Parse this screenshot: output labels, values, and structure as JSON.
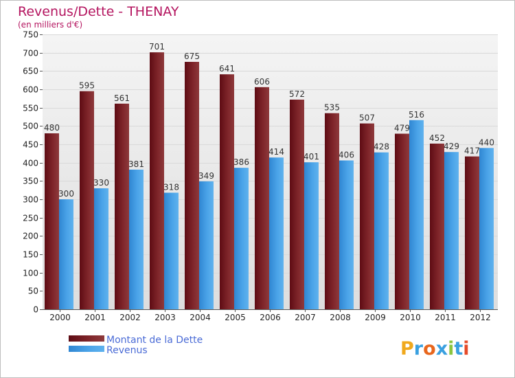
{
  "chart_data": {
    "type": "bar",
    "title": "Revenus/Dette - THENAY",
    "subtitle": "(en milliers d'€)",
    "categories": [
      "2000",
      "2001",
      "2002",
      "2003",
      "2004",
      "2005",
      "2006",
      "2007",
      "2008",
      "2009",
      "2010",
      "2011",
      "2012"
    ],
    "series": [
      {
        "name": "Montant de la Dette",
        "values": [
          480,
          595,
          561,
          701,
          675,
          641,
          606,
          572,
          535,
          507,
          479,
          452,
          417
        ],
        "color": "#7a1b23"
      },
      {
        "name": "Revenus",
        "values": [
          300,
          330,
          381,
          318,
          349,
          386,
          414,
          401,
          406,
          428,
          516,
          429,
          440
        ],
        "color": "#3d97e0"
      }
    ],
    "ylim": [
      0,
      750
    ],
    "yticks": [
      0,
      50,
      100,
      150,
      200,
      250,
      300,
      350,
      400,
      450,
      500,
      550,
      600,
      650,
      700,
      750
    ],
    "grid": true,
    "legend_position": "bottom-left",
    "colors": {
      "title": "#b4145f",
      "grid": "#d9d9d9",
      "plot_bg": "#e8e8e8",
      "legend_text": "#4a6bd6"
    }
  },
  "logo": {
    "text": "Proxiti"
  }
}
